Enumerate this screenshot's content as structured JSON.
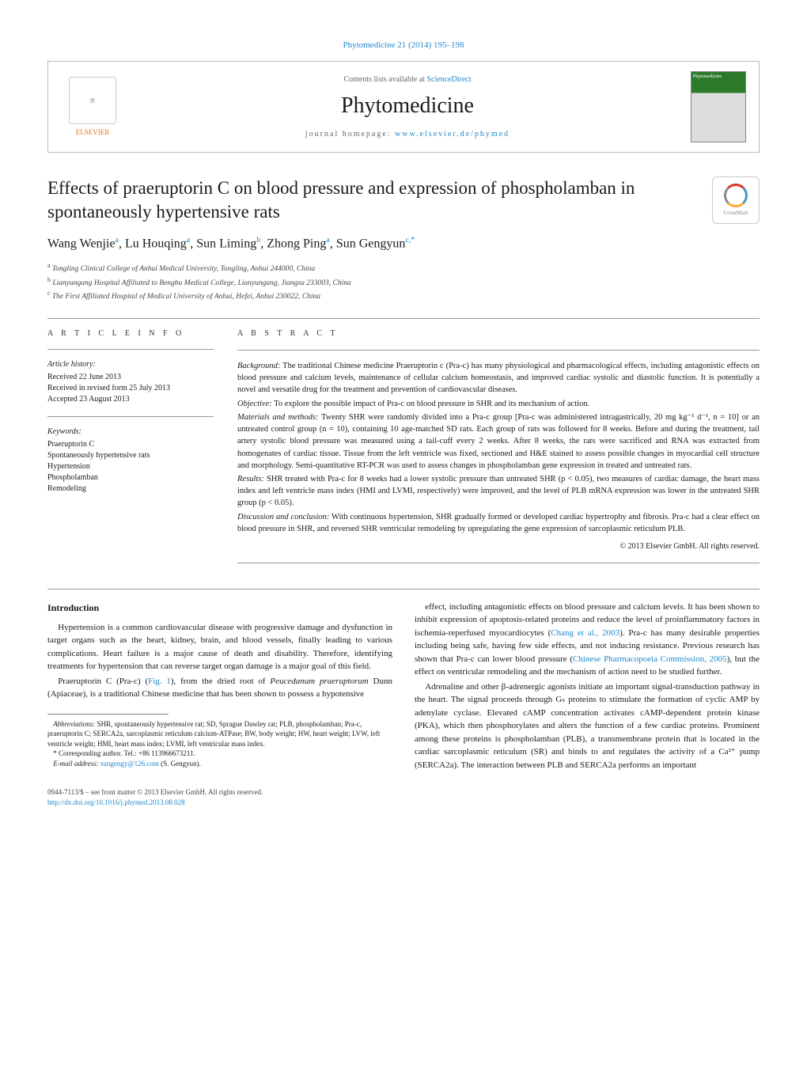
{
  "citation": "Phytomedicine 21 (2014) 195–198",
  "header": {
    "contents_prefix": "Contents lists available at ",
    "contents_link": "ScienceDirect",
    "journal": "Phytomedicine",
    "homepage_prefix": "journal homepage: ",
    "homepage_url": "www.elsevier.de/phymed",
    "publisher_name": "ELSEVIER",
    "crossmark_label": "CrossMark"
  },
  "article": {
    "title": "Effects of praeruptorin C on blood pressure and expression of phospholamban in spontaneously hypertensive rats",
    "authors_html": "Wang Wenjie<sup>a</sup>, Lu Houqing<sup>a</sup>, Sun Liming<sup>b</sup>, Zhong Ping<sup>a</sup>, Sun Gengyun<sup>c,*</sup>",
    "affiliations": [
      "a Tongling Clinical College of Anhui Medical University, Tongling, Anhui 244000, China",
      "b Lianyungang Hospital Affiliated to Bengbu Medical College, Lianyungang, Jiangsu 233003, China",
      "c The First Affiliated Hospital of Medical University of Anhui, Hefei, Anhui 230022, China"
    ]
  },
  "article_info": {
    "heading": "A R T I C L E  I N F O",
    "history_label": "Article history:",
    "history": [
      "Received 22 June 2013",
      "Received in revised form 25 July 2013",
      "Accepted 23 August 2013"
    ],
    "keywords_label": "Keywords:",
    "keywords": [
      "Praeruptorin C",
      "Spontaneously hypertensive rats",
      "Hypertension",
      "Phospholamban",
      "Remodeling"
    ]
  },
  "abstract": {
    "heading": "A B S T R A C T",
    "paragraphs": [
      {
        "label": "Background:",
        "text": "The traditional Chinese medicine Praeruptorin c (Pra-c) has many physiological and pharmacological effects, including antagonistic effects on blood pressure and calcium levels, maintenance of cellular calcium homeostasis, and improved cardiac systolic and diastolic function. It is potentially a novel and versatile drug for the treatment and prevention of cardiovascular diseases."
      },
      {
        "label": "Objective:",
        "text": "To explore the possible impact of Pra-c on blood pressure in SHR and its mechanism of action."
      },
      {
        "label": "Materials and methods:",
        "text": "Twenty SHR were randomly divided into a Pra-c group [Pra-c was administered intragastrically, 20 mg kg⁻¹ d⁻¹, n = 10] or an untreated control group (n = 10), containing 10 age-matched SD rats. Each group of rats was followed for 8 weeks. Before and during the treatment, tail artery systolic blood pressure was measured using a tail-cuff every 2 weeks. After 8 weeks, the rats were sacrificed and RNA was extracted from homogenates of cardiac tissue. Tissue from the left ventricle was fixed, sectioned and H&E stained to assess possible changes in myocardial cell structure and morphology. Semi-quantitative RT-PCR was used to assess changes in phospholamban gene expression in treated and untreated rats."
      },
      {
        "label": "Results:",
        "text": "SHR treated with Pra-c for 8 weeks had a lower systolic pressure than untreated SHR (p < 0.05), two measures of cardiac damage, the heart mass index and left ventricle mass index (HMI and LVMI, respectively) were improved, and the level of PLB mRNA expression was lower in the untreated SHR group (p < 0.05)."
      },
      {
        "label": "Discussion and conclusion:",
        "text": "With continuous hypertension, SHR gradually formed or developed cardiac hypertrophy and fibrosis. Pra-c had a clear effect on blood pressure in SHR, and reversed SHR ventricular remodeling by upregulating the gene expression of sarcoplasmic reticulum PLB."
      }
    ],
    "copyright": "© 2013 Elsevier GmbH. All rights reserved."
  },
  "body": {
    "section_head": "Introduction",
    "paragraphs": [
      "Hypertension is a common cardiovascular disease with progressive damage and dysfunction in target organs such as the heart, kidney, brain, and blood vessels, finally leading to various complications. Heart failure is a major cause of death and disability. Therefore, identifying treatments for hypertension that can reverse target organ damage is a major goal of this field.",
      "Praeruptorin C (Pra-c) (Fig. 1), from the dried root of Peucedanum praeruptorum Dunn (Apiaceae), is a traditional Chinese medicine that has been shown to possess a hypotensive",
      "effect, including antagonistic effects on blood pressure and calcium levels. It has been shown to inhibit expression of apoptosis-related proteins and reduce the level of proinflammatory factors in ischemia-reperfused myocardiocytes (Chang et al., 2003). Pra-c has many desirable properties including being safe, having few side effects, and not inducing resistance. Previous research has shown that Pra-c can lower blood pressure (Chinese Pharmacopoeia Commission, 2005), but the effect on ventricular remodeling and the mechanism of action need to be studied further.",
      "Adrenaline and other β-adrenergic agonists initiate an important signal-transduction pathway in the heart. The signal proceeds through Gₛ proteins to stimulate the formation of cyclic AMP by adenylate cyclase. Elevated cAMP concentration activates cAMP-dependent protein kinase (PKA), which then phosphorylates and alters the function of a few cardiac proteins. Prominent among these proteins is phospholamban (PLB), a transmembrane protein that is located in the cardiac sarcoplasmic reticulum (SR) and binds to and regulates the activity of a Ca²⁺ pump (SERCA2a). The interaction between PLB and SERCA2a performs an important"
    ]
  },
  "footnotes": {
    "abbrev_label": "Abbreviations:",
    "abbrev_text": "SHR, spontaneously hypertensive rat; SD, Sprague Dawley rat; PLB, phospholamban; Pra-c, praeruptorin C; SERCA2a, sarcoplasmic reticulum calcium-ATPase; BW, body weight; HW, heart weight; LVW, left ventricle weight; HMI, heart mass index; LVMI, left ventricular mass index.",
    "corresponding": "* Corresponding author. Tel.: +86 113966673211.",
    "email_label": "E-mail address:",
    "email": "sungengy@126.com",
    "email_suffix": " (S. Gengyun)."
  },
  "footer": {
    "issn_line": "0944-7113/$ – see front matter © 2013 Elsevier GmbH. All rights reserved.",
    "doi": "http://dx.doi.org/10.1016/j.phymed.2013.08.028"
  },
  "colors": {
    "link": "#2288cc",
    "text": "#1a1a1a",
    "rule": "#999999",
    "elsevier_orange": "#e67817"
  }
}
